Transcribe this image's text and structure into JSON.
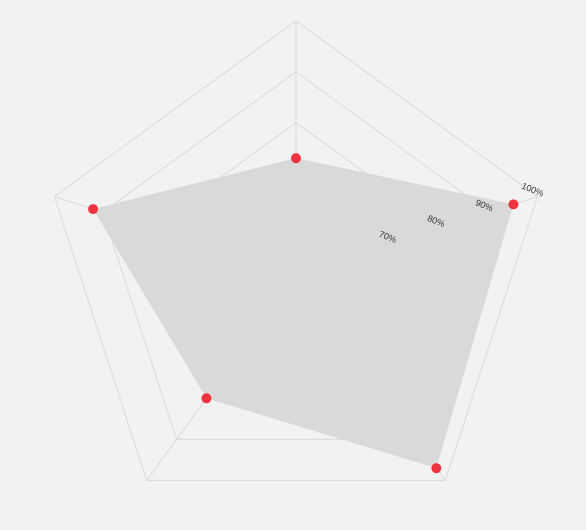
{
  "chart_data": {
    "type": "radar",
    "axes_count": 5,
    "rlim": [
      50,
      100
    ],
    "ticks": [
      {
        "value": 70,
        "label": "70%"
      },
      {
        "value": 80,
        "label": "80%"
      },
      {
        "value": 90,
        "label": "90%"
      },
      {
        "value": 100,
        "label": "100%"
      }
    ],
    "grid_levels": [
      60,
      70,
      80,
      90,
      100
    ],
    "series": [
      {
        "values": [
          73,
          95,
          97,
          80,
          92
        ],
        "fill_color": "#d9d9d9",
        "point_color": "#f0343f"
      }
    ],
    "grid_color": "#dddddd",
    "grid": true,
    "legend": "none"
  }
}
